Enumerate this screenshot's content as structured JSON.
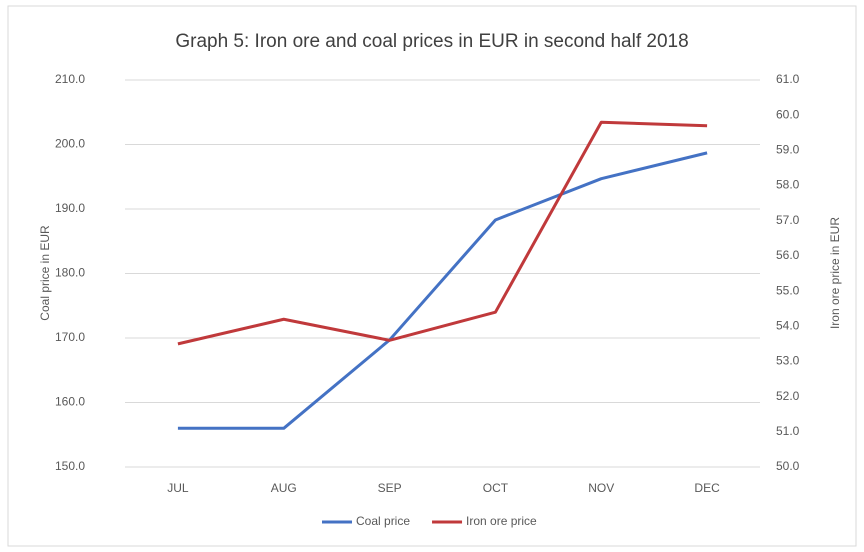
{
  "chart_data": {
    "type": "line",
    "title": "Graph 5: Iron ore and coal prices in EUR in second half 2018",
    "y_label": "Coal price in EUR",
    "y2_label": "Iron ore price in EUR",
    "categories": [
      "JUL",
      "AUG",
      "SEP",
      "OCT",
      "NOV",
      "DEC"
    ],
    "series": [
      {
        "name": "Coal price",
        "color": "#4472c4",
        "values": [
          156.0,
          156.0,
          169.7,
          188.3,
          194.7,
          198.7
        ]
      },
      {
        "name": "Iron ore price",
        "color": "#c0393b",
        "axis": "y2",
        "values": [
          53.5,
          54.2,
          53.6,
          54.4,
          59.8,
          59.7
        ]
      }
    ],
    "ylim": [
      150,
      210
    ],
    "yticks": [
      {
        "value": 150,
        "label": "150.0"
      },
      {
        "value": 160,
        "label": "160.0"
      },
      {
        "value": 170,
        "label": "170.0"
      },
      {
        "value": 180,
        "label": "180.0"
      },
      {
        "value": 190,
        "label": "190.0"
      },
      {
        "value": 200,
        "label": "200.0"
      },
      {
        "value": 210,
        "label": "210.0"
      }
    ],
    "y2lim": [
      50,
      61
    ],
    "y2ticks": [
      {
        "value": 50,
        "label": "50.0"
      },
      {
        "value": 51,
        "label": "51.0"
      },
      {
        "value": 52,
        "label": "52.0"
      },
      {
        "value": 53,
        "label": "53.0"
      },
      {
        "value": 54,
        "label": "54.0"
      },
      {
        "value": 55,
        "label": "55.0"
      },
      {
        "value": 56,
        "label": "56.0"
      },
      {
        "value": 57,
        "label": "57.0"
      },
      {
        "value": 58,
        "label": "58.0"
      },
      {
        "value": 59,
        "label": "59.0"
      },
      {
        "value": 60,
        "label": "60.0"
      },
      {
        "value": 61,
        "label": "61.0"
      }
    ],
    "grid": true,
    "legend": "bottom"
  }
}
